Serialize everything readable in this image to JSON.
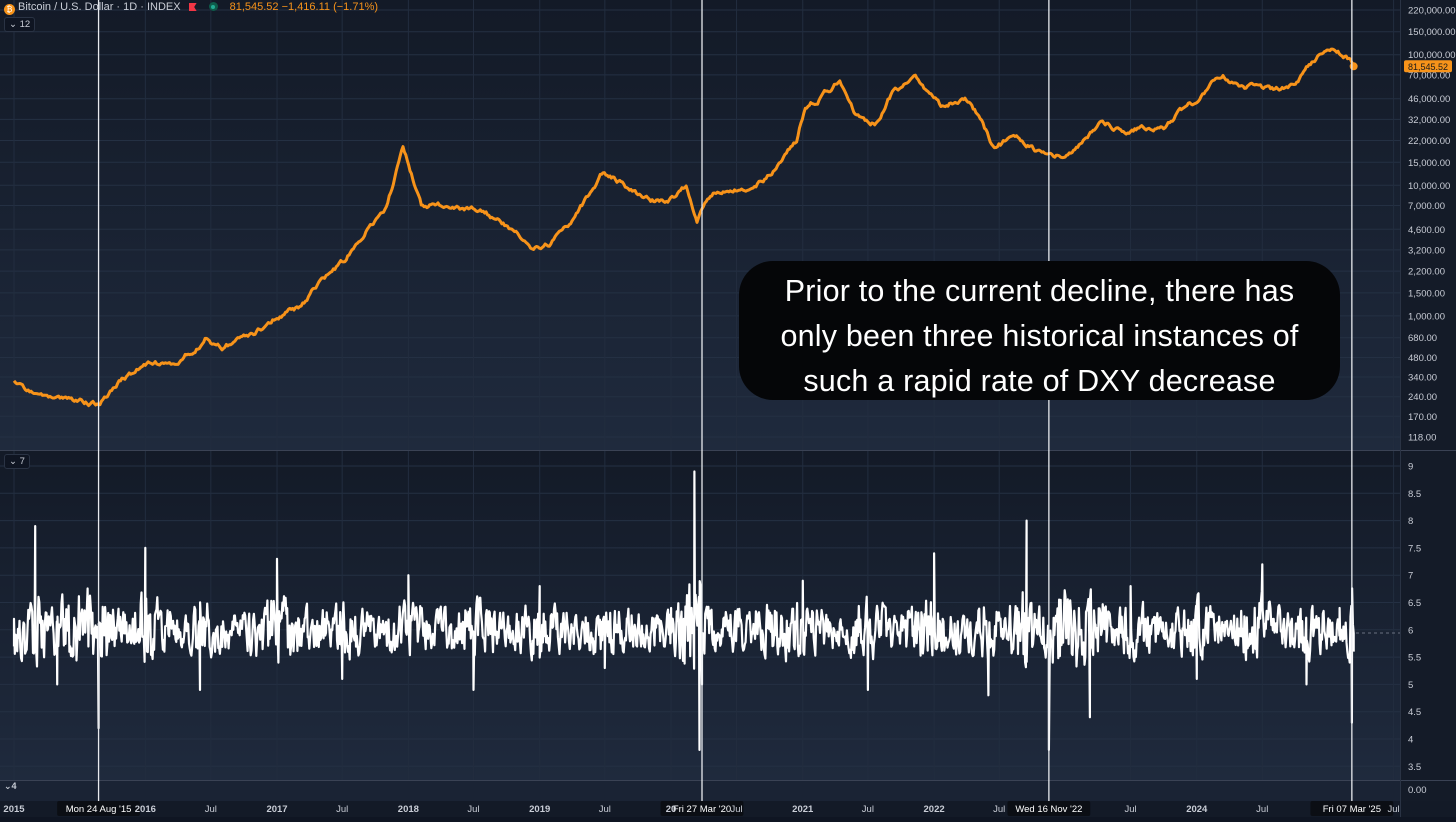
{
  "header": {
    "symbol": "Bitcoin / U.S. Dollar · 1D · INDEX",
    "price": "81,545.52",
    "change": "−1,416.11 (−1.71%)",
    "coin_icon": "bitcoin-icon",
    "flag_icon": "flag-icon",
    "status_icon": "market-status-dot-icon"
  },
  "panes": {
    "price_pane_count": "12",
    "indicator_pane_count": "7",
    "bottom_pane_count": "4"
  },
  "callout": {
    "lines": [
      "Prior to the current decline, there has",
      "only been three historical instances of",
      "such a rapid rate of DXY decrease"
    ]
  },
  "colors": {
    "price_line": "#f7931a",
    "indicator_line": "#ffffff",
    "background_top": "#131a27",
    "background_bottom": "#1f2a3d",
    "price_badge": "#f7931a"
  },
  "chart_data": [
    {
      "type": "line",
      "name": "price",
      "yscale": "log",
      "ylim": [
        118,
        220000
      ],
      "last_value_label": "81,545.52",
      "y_tick_labels": [
        "220,000.00",
        "150,000.00",
        "100,000.00",
        "70,000.00",
        "46,000.00",
        "32,000.00",
        "22,000.00",
        "15,000.00",
        "10,000.00",
        "7,000.00",
        "4,600.00",
        "3,200.00",
        "2,200.00",
        "1,500.00",
        "1,000.00",
        "680.00",
        "480.00",
        "340.00",
        "240.00",
        "170.00",
        "118.00"
      ],
      "y_tick_values": [
        220000,
        150000,
        100000,
        70000,
        46000,
        32000,
        22000,
        15000,
        10000,
        7000,
        4600,
        3200,
        2200,
        1500,
        1000,
        680,
        480,
        340,
        240,
        170,
        118
      ],
      "x": [
        "2015-01-01",
        "2015-03-01",
        "2015-05-01",
        "2015-08-24",
        "2015-11-01",
        "2016-01-01",
        "2016-04-01",
        "2016-06-15",
        "2016-08-01",
        "2016-11-01",
        "2017-01-01",
        "2017-03-01",
        "2017-05-01",
        "2017-07-01",
        "2017-09-01",
        "2017-11-01",
        "2017-12-17",
        "2018-02-06",
        "2018-04-01",
        "2018-06-01",
        "2018-08-01",
        "2018-11-20",
        "2018-12-15",
        "2019-02-01",
        "2019-04-01",
        "2019-06-26",
        "2019-08-15",
        "2019-10-01",
        "2019-12-15",
        "2020-02-12",
        "2020-03-13",
        "2020-03-27",
        "2020-05-01",
        "2020-07-15",
        "2020-09-01",
        "2020-10-15",
        "2020-12-15",
        "2021-01-08",
        "2021-02-15",
        "2021-04-14",
        "2021-05-23",
        "2021-07-20",
        "2021-09-07",
        "2021-11-10",
        "2022-01-20",
        "2022-03-28",
        "2022-05-01",
        "2022-06-18",
        "2022-08-14",
        "2022-09-30",
        "2022-11-16",
        "2022-12-31",
        "2023-03-15",
        "2023-04-14",
        "2023-06-15",
        "2023-08-01",
        "2023-10-01",
        "2023-11-15",
        "2024-01-01",
        "2024-03-14",
        "2024-05-01",
        "2024-08-05",
        "2024-10-01",
        "2024-11-12",
        "2024-12-17",
        "2025-01-20",
        "2025-02-15",
        "2025-03-07",
        "2025-03-12"
      ],
      "y": [
        320,
        260,
        235,
        210,
        330,
        430,
        420,
        680,
        570,
        740,
        970,
        1150,
        1800,
        2500,
        4300,
        7000,
        19500,
        7000,
        7000,
        6500,
        6300,
        4000,
        3400,
        3600,
        5200,
        12500,
        10500,
        8300,
        7200,
        10000,
        5000,
        6700,
        9000,
        9200,
        11000,
        13000,
        22000,
        40000,
        47000,
        63000,
        35000,
        30000,
        52000,
        67000,
        40000,
        47000,
        35000,
        19000,
        24000,
        19500,
        16500,
        16600,
        24500,
        30000,
        26000,
        29000,
        27000,
        37000,
        44000,
        71000,
        58000,
        54000,
        62000,
        87000,
        107000,
        105000,
        96000,
        87000,
        81545
      ]
    },
    {
      "type": "line",
      "name": "indicator",
      "ylim": [
        3.25,
        9.15
      ],
      "y_tick_labels": [
        "9",
        "8.5",
        "8",
        "7.5",
        "7",
        "6.5",
        "6",
        "5.5",
        "5",
        "4.5",
        "4",
        "3.5"
      ],
      "y_tick_values": [
        9,
        8.5,
        8,
        7.5,
        7,
        6.5,
        6,
        5.5,
        5,
        4.5,
        4,
        3.5
      ],
      "x": [
        "2015-01-01",
        "2015-03-01",
        "2015-05-01",
        "2015-08-24",
        "2016-01-01",
        "2016-06-01",
        "2017-01-01",
        "2017-07-01",
        "2018-01-01",
        "2018-07-01",
        "2019-01-01",
        "2019-07-01",
        "2020-01-01",
        "2020-03-06",
        "2020-03-20",
        "2020-03-27",
        "2020-06-01",
        "2021-01-01",
        "2021-07-01",
        "2022-01-01",
        "2022-06-01",
        "2022-09-15",
        "2022-11-16",
        "2023-03-10",
        "2023-07-01",
        "2024-01-01",
        "2024-07-01",
        "2024-11-01",
        "2025-02-01",
        "2025-03-07",
        "2025-03-12"
      ],
      "y": [
        6.2,
        7.9,
        5.0,
        4.2,
        7.5,
        4.9,
        7.3,
        5.1,
        7.0,
        4.9,
        6.8,
        5.3,
        6.4,
        8.9,
        3.8,
        5.0,
        6.3,
        6.9,
        4.9,
        7.4,
        4.8,
        8.0,
        3.8,
        4.4,
        6.8,
        5.1,
        7.2,
        5.0,
        6.4,
        4.3,
        5.6
      ]
    }
  ],
  "x_axis": {
    "tick_labels": [
      "2015",
      "2016",
      "Jul",
      "2017",
      "Jul",
      "2018",
      "Jul",
      "2019",
      "Jul",
      "20",
      "Jul",
      "2021",
      "Jul",
      "2022",
      "Jul",
      "Jul",
      "2024",
      "Jul",
      "Jul"
    ],
    "tick_dates": [
      "2015-01-01",
      "2016-01-01",
      "2016-07-01",
      "2017-01-01",
      "2017-07-01",
      "2018-01-01",
      "2018-07-01",
      "2019-01-01",
      "2019-07-01",
      "2020-01-01",
      "2020-07-01",
      "2021-01-01",
      "2021-07-01",
      "2022-01-01",
      "2022-07-01",
      "2023-07-01",
      "2024-01-01",
      "2024-07-01",
      "2025-07-01"
    ],
    "markers": [
      {
        "date": "2015-08-24",
        "label": "Mon 24 Aug '15"
      },
      {
        "date": "2020-03-27",
        "label": "Fri 27 Mar '20"
      },
      {
        "date": "2022-11-16",
        "label": "Wed 16 Nov '22"
      },
      {
        "date": "2025-03-07",
        "label": "Fri 07 Mar '25"
      }
    ],
    "bottom_pane_tick_label": "0.00"
  }
}
